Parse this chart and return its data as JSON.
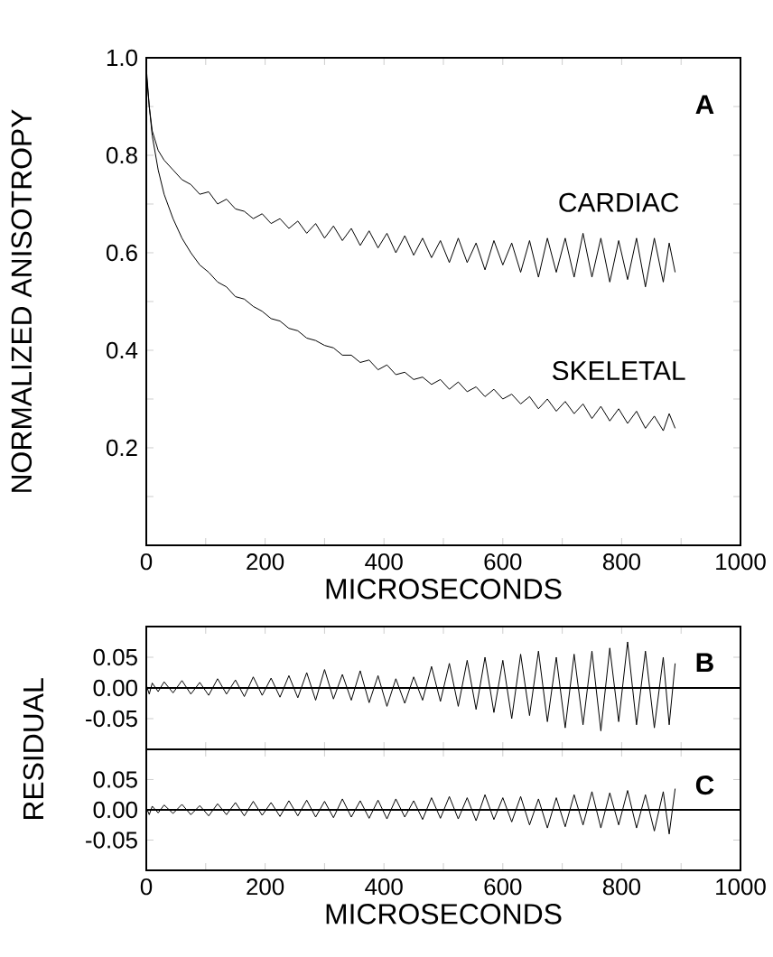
{
  "chart_data": [
    {
      "type": "line",
      "xlabel": "MICROSECONDS",
      "ylabel": "NORMALIZED  ANISOTROPY",
      "annotations": [
        "A"
      ],
      "line_style": "solid",
      "marker": "none",
      "grid": false,
      "xlim": [
        0,
        1000
      ],
      "ylim": [
        0,
        1.0
      ],
      "xticks": [
        0,
        {
          "value": 100,
          "label": null
        },
        200,
        {
          "value": 300,
          "label": null
        },
        400,
        {
          "value": 500,
          "label": null
        },
        600,
        {
          "value": 700,
          "label": null
        },
        800,
        {
          "value": 900,
          "label": null
        },
        1000
      ],
      "yticks": [
        {
          "value": 0.1,
          "label": null
        },
        {
          "value": 0.2,
          "label": "0.2"
        },
        {
          "value": 0.3,
          "label": null
        },
        {
          "value": 0.4,
          "label": "0.4"
        },
        {
          "value": 0.5,
          "label": null
        },
        {
          "value": 0.6,
          "label": "0.6"
        },
        {
          "value": 0.7,
          "label": null
        },
        {
          "value": 0.8,
          "label": "0.8"
        },
        {
          "value": 0.9,
          "label": null
        },
        {
          "value": 1.0,
          "label": "1.0"
        }
      ],
      "x": [
        0,
        5,
        10,
        20,
        30,
        45,
        60,
        75,
        90,
        105,
        120,
        135,
        150,
        165,
        180,
        195,
        210,
        225,
        240,
        255,
        270,
        285,
        300,
        315,
        330,
        345,
        360,
        375,
        390,
        405,
        420,
        435,
        450,
        465,
        480,
        495,
        510,
        525,
        540,
        555,
        570,
        585,
        600,
        615,
        630,
        645,
        660,
        675,
        690,
        705,
        720,
        735,
        750,
        765,
        780,
        795,
        810,
        825,
        840,
        855,
        870,
        880,
        890
      ],
      "series": [
        {
          "name": "CARDIAC",
          "color": "#000000",
          "values": [
            0.98,
            0.9,
            0.85,
            0.81,
            0.79,
            0.77,
            0.75,
            0.74,
            0.72,
            0.725,
            0.7,
            0.71,
            0.69,
            0.685,
            0.67,
            0.68,
            0.66,
            0.67,
            0.65,
            0.665,
            0.64,
            0.66,
            0.63,
            0.655,
            0.625,
            0.65,
            0.615,
            0.645,
            0.61,
            0.64,
            0.6,
            0.635,
            0.595,
            0.63,
            0.59,
            0.625,
            0.58,
            0.63,
            0.58,
            0.62,
            0.565,
            0.625,
            0.575,
            0.62,
            0.56,
            0.625,
            0.55,
            0.63,
            0.56,
            0.63,
            0.55,
            0.64,
            0.55,
            0.63,
            0.54,
            0.625,
            0.545,
            0.63,
            0.53,
            0.63,
            0.54,
            0.62,
            0.56
          ]
        },
        {
          "name": "SKELETAL",
          "color": "#000000",
          "values": [
            0.97,
            0.9,
            0.84,
            0.77,
            0.72,
            0.67,
            0.63,
            0.6,
            0.575,
            0.56,
            0.54,
            0.53,
            0.51,
            0.505,
            0.49,
            0.48,
            0.465,
            0.46,
            0.445,
            0.44,
            0.425,
            0.42,
            0.41,
            0.405,
            0.39,
            0.39,
            0.375,
            0.38,
            0.36,
            0.37,
            0.35,
            0.355,
            0.34,
            0.345,
            0.33,
            0.34,
            0.32,
            0.335,
            0.315,
            0.325,
            0.305,
            0.32,
            0.3,
            0.31,
            0.29,
            0.305,
            0.28,
            0.3,
            0.275,
            0.295,
            0.27,
            0.29,
            0.26,
            0.285,
            0.255,
            0.28,
            0.25,
            0.275,
            0.24,
            0.265,
            0.235,
            0.27,
            0.24
          ]
        }
      ]
    },
    {
      "type": "line",
      "ylabel": "RESIDUAL",
      "annotations": [
        "B"
      ],
      "line_style": "solid",
      "marker": "none",
      "grid": false,
      "tick_labels": "y",
      "xlim": [
        0,
        1000
      ],
      "ylim": [
        -0.1,
        0.1
      ],
      "xticks": [
        0,
        {
          "value": 100,
          "label": null
        },
        200,
        {
          "value": 300,
          "label": null
        },
        400,
        {
          "value": 500,
          "label": null
        },
        600,
        {
          "value": 700,
          "label": null
        },
        800,
        {
          "value": 900,
          "label": null
        },
        1000
      ],
      "yticks": [
        {
          "value": -0.05,
          "label": "-0.05"
        },
        {
          "value": 0,
          "label": "0.00"
        },
        {
          "value": 0.05,
          "label": "0.05"
        }
      ],
      "ref_lines": [
        {
          "axis": "y",
          "value": 0,
          "color": "#000000"
        }
      ],
      "x": [
        0,
        5,
        10,
        20,
        30,
        45,
        60,
        75,
        90,
        105,
        120,
        135,
        150,
        165,
        180,
        195,
        210,
        225,
        240,
        255,
        270,
        285,
        300,
        315,
        330,
        345,
        360,
        375,
        390,
        405,
        420,
        435,
        450,
        465,
        480,
        495,
        510,
        525,
        540,
        555,
        570,
        585,
        600,
        615,
        630,
        645,
        660,
        675,
        690,
        705,
        720,
        735,
        750,
        765,
        780,
        795,
        810,
        825,
        840,
        855,
        870,
        880,
        890
      ],
      "series": [
        {
          "color": "#000000",
          "values": [
            0.005,
            -0.01,
            0.008,
            -0.006,
            0.01,
            -0.008,
            0.012,
            -0.01,
            0.009,
            -0.012,
            0.015,
            -0.01,
            0.013,
            -0.014,
            0.018,
            -0.012,
            0.016,
            -0.015,
            0.02,
            -0.016,
            0.025,
            -0.02,
            0.03,
            -0.018,
            0.022,
            -0.02,
            0.028,
            -0.024,
            0.02,
            -0.03,
            0.015,
            -0.025,
            0.018,
            -0.02,
            0.035,
            -0.022,
            0.04,
            -0.03,
            0.045,
            -0.035,
            0.05,
            -0.04,
            0.045,
            -0.05,
            0.055,
            -0.045,
            0.06,
            -0.055,
            0.05,
            -0.065,
            0.055,
            -0.06,
            0.06,
            -0.07,
            0.065,
            -0.055,
            0.075,
            -0.06,
            0.06,
            -0.065,
            0.05,
            -0.06,
            0.04
          ]
        }
      ]
    },
    {
      "type": "line",
      "xlabel": "MICROSECONDS",
      "annotations": [
        "C"
      ],
      "line_style": "solid",
      "marker": "none",
      "grid": false,
      "xlim": [
        0,
        1000
      ],
      "ylim": [
        -0.1,
        0.1
      ],
      "xticks": [
        0,
        {
          "value": 100,
          "label": null
        },
        200,
        {
          "value": 300,
          "label": null
        },
        400,
        {
          "value": 500,
          "label": null
        },
        600,
        {
          "value": 700,
          "label": null
        },
        800,
        {
          "value": 900,
          "label": null
        },
        1000
      ],
      "yticks": [
        {
          "value": -0.05,
          "label": "-0.05"
        },
        {
          "value": 0,
          "label": "0.00"
        },
        {
          "value": 0.05,
          "label": "0.05"
        }
      ],
      "ref_lines": [
        {
          "axis": "y",
          "value": 0,
          "color": "#000000"
        }
      ],
      "x": [
        0,
        5,
        10,
        20,
        30,
        45,
        60,
        75,
        90,
        105,
        120,
        135,
        150,
        165,
        180,
        195,
        210,
        225,
        240,
        255,
        270,
        285,
        300,
        315,
        330,
        345,
        360,
        375,
        390,
        405,
        420,
        435,
        450,
        465,
        480,
        495,
        510,
        525,
        540,
        555,
        570,
        585,
        600,
        615,
        630,
        645,
        660,
        675,
        690,
        705,
        720,
        735,
        750,
        765,
        780,
        795,
        810,
        825,
        840,
        855,
        870,
        880,
        890
      ],
      "series": [
        {
          "color": "#000000",
          "values": [
            0.004,
            -0.008,
            0.006,
            -0.005,
            0.008,
            -0.006,
            0.009,
            -0.008,
            0.007,
            -0.01,
            0.01,
            -0.008,
            0.012,
            -0.01,
            0.014,
            -0.009,
            0.012,
            -0.011,
            0.015,
            -0.01,
            0.016,
            -0.012,
            0.014,
            -0.013,
            0.018,
            -0.012,
            0.015,
            -0.014,
            0.016,
            -0.015,
            0.018,
            -0.012,
            0.015,
            -0.016,
            0.02,
            -0.014,
            0.022,
            -0.015,
            0.02,
            -0.018,
            0.025,
            -0.016,
            0.02,
            -0.02,
            0.022,
            -0.025,
            0.018,
            -0.03,
            0.02,
            -0.028,
            0.025,
            -0.025,
            0.03,
            -0.03,
            0.028,
            -0.025,
            0.032,
            -0.03,
            0.025,
            -0.035,
            0.03,
            -0.04,
            0.035
          ]
        }
      ]
    }
  ]
}
